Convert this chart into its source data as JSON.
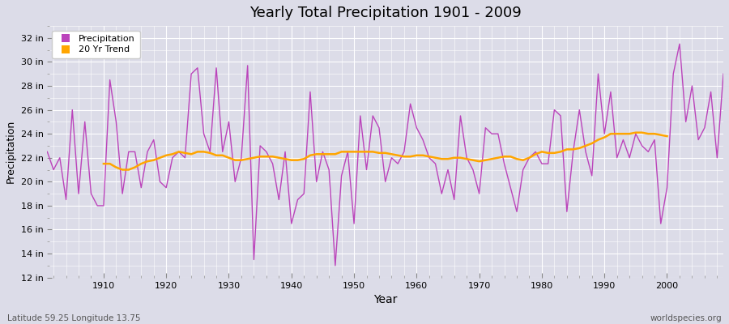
{
  "title": "Yearly Total Precipitation 1901 - 2009",
  "xlabel": "Year",
  "ylabel": "Precipitation",
  "bottom_left_label": "Latitude 59.25 Longitude 13.75",
  "bottom_right_label": "worldspecies.org",
  "background_color": "#dcdce8",
  "plot_bg_color": "#dcdce8",
  "precip_color": "#bb44bb",
  "trend_color": "#ffa500",
  "ylim": [
    12,
    33
  ],
  "yticks": [
    12,
    14,
    16,
    18,
    20,
    22,
    24,
    26,
    28,
    30,
    32
  ],
  "xlim": [
    1901,
    2009
  ],
  "xticks": [
    1910,
    1920,
    1930,
    1940,
    1950,
    1960,
    1970,
    1980,
    1990,
    2000
  ],
  "years": [
    1901,
    1902,
    1903,
    1904,
    1905,
    1906,
    1907,
    1908,
    1909,
    1910,
    1911,
    1912,
    1913,
    1914,
    1915,
    1916,
    1917,
    1918,
    1919,
    1920,
    1921,
    1922,
    1923,
    1924,
    1925,
    1926,
    1927,
    1928,
    1929,
    1930,
    1931,
    1932,
    1933,
    1934,
    1935,
    1936,
    1937,
    1938,
    1939,
    1940,
    1941,
    1942,
    1943,
    1944,
    1945,
    1946,
    1947,
    1948,
    1949,
    1950,
    1951,
    1952,
    1953,
    1954,
    1955,
    1956,
    1957,
    1958,
    1959,
    1960,
    1961,
    1962,
    1963,
    1964,
    1965,
    1966,
    1967,
    1968,
    1969,
    1970,
    1971,
    1972,
    1973,
    1974,
    1975,
    1976,
    1977,
    1978,
    1979,
    1980,
    1981,
    1982,
    1983,
    1984,
    1985,
    1986,
    1987,
    1988,
    1989,
    1990,
    1991,
    1992,
    1993,
    1994,
    1995,
    1996,
    1997,
    1998,
    1999,
    2000,
    2001,
    2002,
    2003,
    2004,
    2005,
    2006,
    2007,
    2008,
    2009
  ],
  "precip": [
    22.5,
    21.0,
    22.0,
    18.5,
    26.0,
    19.0,
    25.0,
    19.0,
    18.0,
    18.0,
    28.5,
    25.0,
    19.0,
    22.5,
    22.5,
    19.5,
    22.5,
    23.5,
    20.0,
    19.5,
    22.0,
    22.5,
    22.0,
    29.0,
    29.5,
    24.0,
    22.5,
    29.5,
    22.5,
    25.0,
    20.0,
    22.0,
    29.7,
    13.5,
    23.0,
    22.5,
    21.5,
    18.5,
    22.5,
    16.5,
    18.5,
    19.0,
    27.5,
    20.0,
    22.5,
    21.0,
    13.0,
    20.5,
    22.5,
    16.5,
    25.5,
    21.0,
    25.5,
    24.5,
    20.0,
    22.0,
    21.5,
    22.5,
    26.5,
    24.5,
    23.5,
    22.0,
    21.5,
    19.0,
    21.0,
    18.5,
    25.5,
    22.0,
    21.0,
    19.0,
    24.5,
    24.0,
    24.0,
    21.5,
    19.5,
    17.5,
    21.0,
    22.0,
    22.5,
    21.5,
    21.5,
    26.0,
    25.5,
    17.5,
    22.5,
    26.0,
    22.5,
    20.5,
    29.0,
    24.0,
    27.5,
    22.0,
    23.5,
    22.0,
    24.0,
    23.0,
    22.5,
    23.5,
    16.5,
    19.5,
    29.0,
    31.5,
    25.0,
    28.0,
    23.5,
    24.5,
    27.5,
    22.0,
    29.0
  ],
  "trend": [
    null,
    null,
    null,
    null,
    null,
    null,
    null,
    null,
    null,
    21.5,
    21.5,
    21.2,
    21.0,
    21.0,
    21.2,
    21.5,
    21.7,
    21.8,
    22.0,
    22.2,
    22.3,
    22.5,
    22.4,
    22.3,
    22.5,
    22.5,
    22.4,
    22.2,
    22.2,
    22.0,
    21.8,
    21.8,
    21.9,
    22.0,
    22.1,
    22.1,
    22.1,
    22.0,
    21.9,
    21.8,
    21.8,
    21.9,
    22.2,
    22.3,
    22.3,
    22.3,
    22.3,
    22.5,
    22.5,
    22.5,
    22.5,
    22.5,
    22.5,
    22.4,
    22.4,
    22.3,
    22.2,
    22.1,
    22.1,
    22.2,
    22.2,
    22.1,
    22.0,
    21.9,
    21.9,
    22.0,
    22.0,
    21.9,
    21.8,
    21.7,
    21.8,
    21.9,
    22.0,
    22.1,
    22.1,
    21.9,
    21.8,
    22.0,
    22.3,
    22.5,
    22.4,
    22.4,
    22.5,
    22.7,
    22.7,
    22.8,
    23.0,
    23.2,
    23.5,
    23.7,
    24.0,
    24.0,
    24.0,
    24.0,
    24.1,
    24.1,
    24.0,
    24.0,
    23.9,
    23.8,
    null,
    null,
    null,
    null,
    null,
    null,
    null,
    null,
    null
  ]
}
